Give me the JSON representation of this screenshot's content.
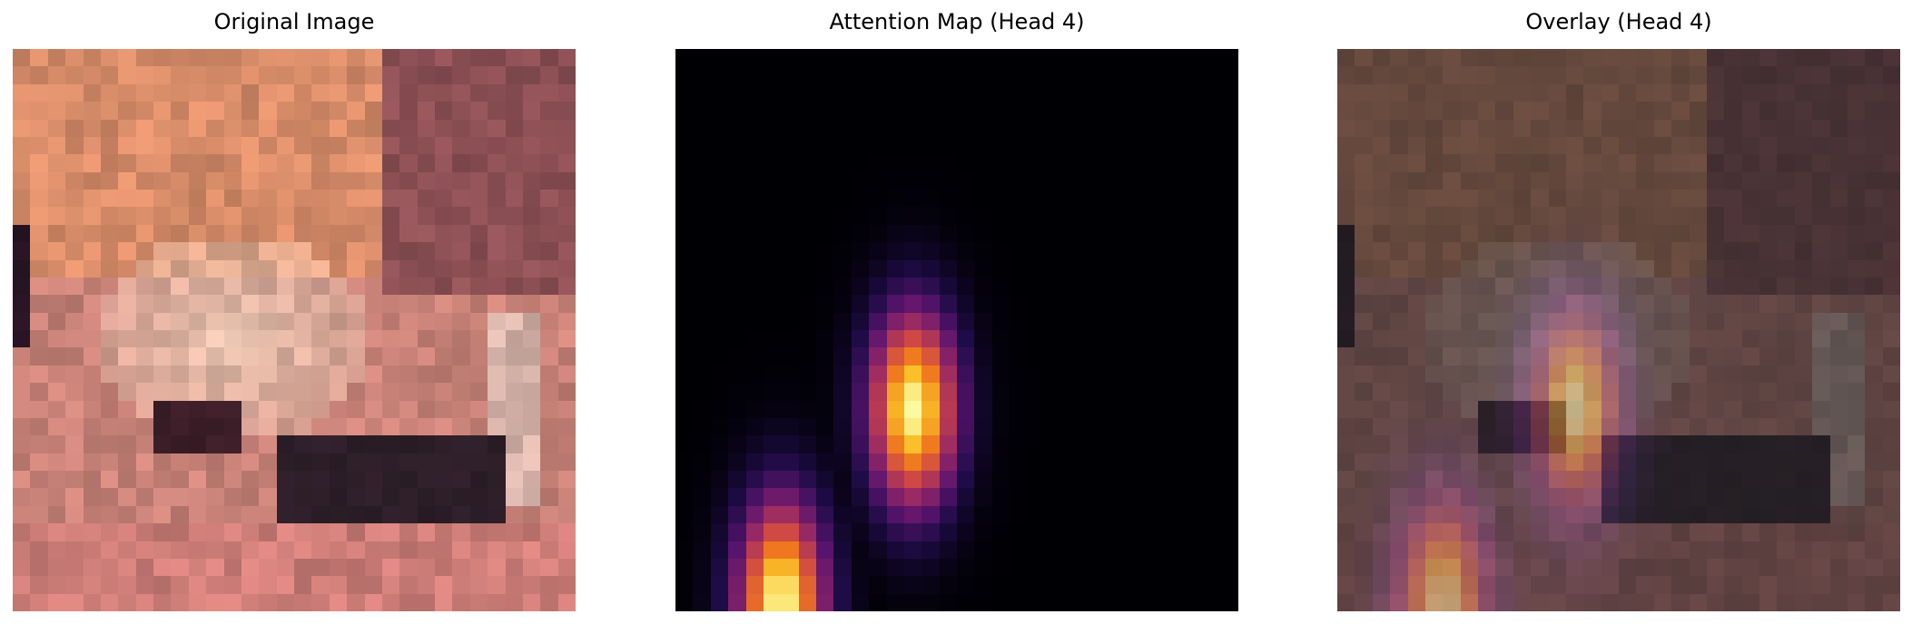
{
  "panels": [
    {
      "title": "Original Image"
    },
    {
      "title": "Attention Map (Head 4)"
    },
    {
      "title": "Overlay (Head 4)"
    }
  ],
  "colormap": "inferno",
  "attention": {
    "grid_size": 32,
    "blobs": [
      {
        "center_row": 20,
        "center_col": 13,
        "sigma_row": 4,
        "sigma_col": 1.8,
        "peak": 1.0
      },
      {
        "center_row": 31,
        "center_col": 5.5,
        "sigma_row": 4.2,
        "sigma_col": 1.8,
        "peak": 1.0
      }
    ]
  }
}
